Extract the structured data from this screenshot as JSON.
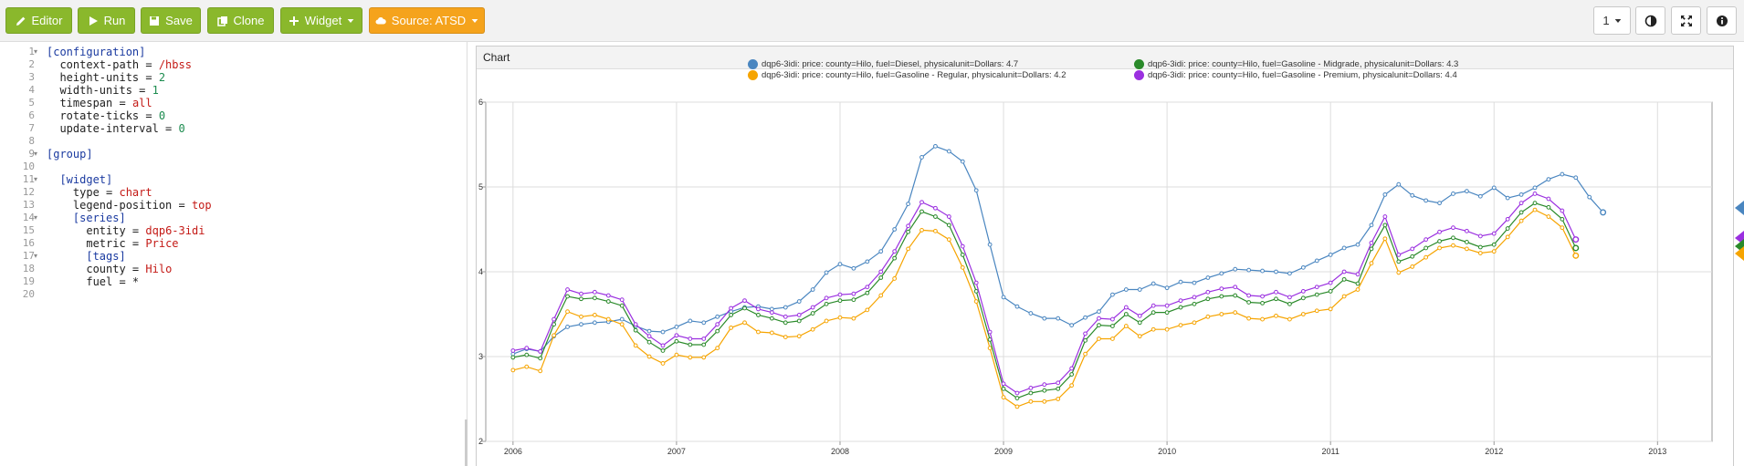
{
  "toolbar": {
    "editor_label": "Editor",
    "run_label": "Run",
    "save_label": "Save",
    "clone_label": "Clone",
    "widget_label": "Widget",
    "source_label": "Source: ATSD",
    "layout_value": "1"
  },
  "editor": {
    "line_numbers": [
      "1",
      "2",
      "3",
      "4",
      "5",
      "6",
      "7",
      "8",
      "9",
      "10",
      "11",
      "12",
      "13",
      "14",
      "15",
      "16",
      "17",
      "18",
      "19",
      "20"
    ],
    "lines": [
      {
        "indent": "",
        "parts": [
          [
            "sec",
            "[configuration]"
          ]
        ]
      },
      {
        "indent": "  ",
        "parts": [
          [
            "key",
            "context-path = "
          ],
          [
            "str",
            "/hbss"
          ]
        ]
      },
      {
        "indent": "  ",
        "parts": [
          [
            "key",
            "height-units = "
          ],
          [
            "num",
            "2"
          ]
        ]
      },
      {
        "indent": "  ",
        "parts": [
          [
            "key",
            "width-units = "
          ],
          [
            "num",
            "1"
          ]
        ]
      },
      {
        "indent": "  ",
        "parts": [
          [
            "key",
            "timespan = "
          ],
          [
            "str",
            "all"
          ]
        ]
      },
      {
        "indent": "  ",
        "parts": [
          [
            "key",
            "rotate-ticks = "
          ],
          [
            "num",
            "0"
          ]
        ]
      },
      {
        "indent": "  ",
        "parts": [
          [
            "key",
            "update-interval = "
          ],
          [
            "num",
            "0"
          ]
        ]
      },
      {
        "indent": "",
        "parts": []
      },
      {
        "indent": "",
        "parts": [
          [
            "sec",
            "[group]"
          ]
        ]
      },
      {
        "indent": "",
        "parts": []
      },
      {
        "indent": "  ",
        "parts": [
          [
            "sec",
            "[widget]"
          ]
        ]
      },
      {
        "indent": "    ",
        "parts": [
          [
            "key",
            "type = "
          ],
          [
            "str",
            "chart"
          ]
        ]
      },
      {
        "indent": "    ",
        "parts": [
          [
            "key",
            "legend-position = "
          ],
          [
            "str",
            "top"
          ]
        ]
      },
      {
        "indent": "    ",
        "parts": [
          [
            "sec",
            "[series]"
          ]
        ]
      },
      {
        "indent": "      ",
        "parts": [
          [
            "key",
            "entity = "
          ],
          [
            "str",
            "dqp6-3idi"
          ]
        ]
      },
      {
        "indent": "      ",
        "parts": [
          [
            "key",
            "metric = "
          ],
          [
            "str",
            "Price"
          ]
        ]
      },
      {
        "indent": "      ",
        "parts": [
          [
            "sec",
            "[tags]"
          ]
        ]
      },
      {
        "indent": "      ",
        "parts": [
          [
            "key",
            "county = "
          ],
          [
            "str",
            "Hilo"
          ]
        ]
      },
      {
        "indent": "      ",
        "parts": [
          [
            "key",
            "fuel = *"
          ]
        ]
      },
      {
        "indent": "",
        "parts": []
      }
    ]
  },
  "panel": {
    "title": "Chart"
  },
  "icons": {
    "editor": "pencil-icon",
    "run": "play-icon",
    "save": "save-icon",
    "clone": "copy-icon",
    "widget": "plus-icon",
    "source": "cloud-icon",
    "contrast": "contrast-icon",
    "fullscreen": "fullscreen-icon",
    "info": "info-icon"
  },
  "colors": {
    "green_button": "#8ab82c",
    "orange_button": "#f5a31c",
    "diesel": "#4a86c0",
    "regular": "#f6a400",
    "midgrade": "#2a8a2a",
    "premium": "#9b30e0"
  },
  "chart_data": {
    "type": "line",
    "x_start": "2006-01",
    "x_step": "month",
    "xlim": [
      "2005-11",
      "2013-05"
    ],
    "x_ticks": [
      "2006",
      "2007",
      "2008",
      "2009",
      "2010",
      "2011",
      "2012",
      "2013"
    ],
    "ylim": [
      2,
      6
    ],
    "y_ticks": [
      "2",
      "3",
      "4",
      "5",
      "6"
    ],
    "grid": true,
    "legend_position": "top",
    "series": [
      {
        "name": "dqp6-3idi: price: county=Hilo, fuel=Diesel, physicalunit=Dollars: 4.7",
        "color": "#4a86c0",
        "values": [
          3.03,
          3.09,
          3.06,
          3.24,
          3.35,
          3.38,
          3.4,
          3.41,
          3.44,
          3.36,
          3.3,
          3.29,
          3.35,
          3.42,
          3.4,
          3.47,
          3.53,
          3.58,
          3.59,
          3.56,
          3.58,
          3.65,
          3.79,
          3.99,
          4.09,
          4.04,
          4.12,
          4.24,
          4.5,
          4.8,
          5.35,
          5.48,
          5.42,
          5.3,
          4.96,
          4.32,
          3.7,
          3.59,
          3.51,
          3.45,
          3.45,
          3.37,
          3.46,
          3.53,
          3.73,
          3.79,
          3.79,
          3.86,
          3.81,
          3.88,
          3.87,
          3.93,
          3.98,
          4.03,
          4.02,
          4.01,
          4.0,
          3.98,
          4.05,
          4.13,
          4.2,
          4.28,
          4.32,
          4.55,
          4.91,
          5.03,
          4.9,
          4.84,
          4.81,
          4.92,
          4.95,
          4.89,
          4.99,
          4.87,
          4.91,
          4.99,
          5.09,
          5.15,
          5.11,
          4.88,
          4.7
        ]
      },
      {
        "name": "dqp6-3idi: price: county=Hilo, fuel=Gasoline - Regular, physicalunit=Dollars: 4.2",
        "color": "#f6a400",
        "values": [
          2.84,
          2.88,
          2.83,
          3.25,
          3.53,
          3.47,
          3.49,
          3.44,
          3.38,
          3.13,
          3.0,
          2.92,
          3.02,
          2.99,
          2.99,
          3.1,
          3.34,
          3.4,
          3.29,
          3.28,
          3.23,
          3.24,
          3.32,
          3.42,
          3.46,
          3.45,
          3.55,
          3.72,
          3.92,
          4.27,
          4.49,
          4.48,
          4.38,
          4.05,
          3.65,
          3.1,
          2.52,
          2.41,
          2.47,
          2.47,
          2.5,
          2.66,
          3.03,
          3.21,
          3.21,
          3.36,
          3.24,
          3.32,
          3.32,
          3.37,
          3.4,
          3.47,
          3.5,
          3.52,
          3.45,
          3.44,
          3.48,
          3.44,
          3.5,
          3.54,
          3.56,
          3.71,
          3.79,
          4.1,
          4.39,
          3.99,
          4.06,
          4.17,
          4.28,
          4.31,
          4.27,
          4.22,
          4.24,
          4.41,
          4.6,
          4.73,
          4.65,
          4.52,
          4.19
        ]
      },
      {
        "name": "dqp6-3idi: price: county=Hilo, fuel=Gasoline - Midgrade, physicalunit=Dollars: 4.3",
        "color": "#2a8a2a",
        "values": [
          2.99,
          3.02,
          2.98,
          3.38,
          3.71,
          3.68,
          3.69,
          3.65,
          3.6,
          3.31,
          3.17,
          3.07,
          3.18,
          3.14,
          3.14,
          3.3,
          3.49,
          3.57,
          3.49,
          3.45,
          3.4,
          3.42,
          3.51,
          3.62,
          3.66,
          3.67,
          3.75,
          3.93,
          4.16,
          4.47,
          4.71,
          4.65,
          4.55,
          4.2,
          3.77,
          3.2,
          2.62,
          2.51,
          2.57,
          2.6,
          2.62,
          2.79,
          3.19,
          3.37,
          3.36,
          3.5,
          3.4,
          3.52,
          3.52,
          3.58,
          3.62,
          3.68,
          3.71,
          3.72,
          3.64,
          3.63,
          3.68,
          3.62,
          3.69,
          3.73,
          3.77,
          3.91,
          3.86,
          4.27,
          4.55,
          4.12,
          4.18,
          4.28,
          4.36,
          4.4,
          4.35,
          4.29,
          4.32,
          4.51,
          4.7,
          4.81,
          4.76,
          4.62,
          4.28
        ]
      },
      {
        "name": "dqp6-3idi: price: county=Hilo, fuel=Gasoline - Premium, physicalunit=Dollars: 4.4",
        "color": "#9b30e0",
        "values": [
          3.07,
          3.1,
          3.06,
          3.44,
          3.79,
          3.74,
          3.76,
          3.72,
          3.67,
          3.38,
          3.24,
          3.13,
          3.25,
          3.21,
          3.21,
          3.38,
          3.57,
          3.66,
          3.56,
          3.52,
          3.47,
          3.49,
          3.58,
          3.69,
          3.73,
          3.74,
          3.82,
          4.0,
          4.24,
          4.54,
          4.82,
          4.75,
          4.65,
          4.3,
          3.87,
          3.29,
          2.68,
          2.57,
          2.63,
          2.67,
          2.69,
          2.86,
          3.27,
          3.45,
          3.44,
          3.58,
          3.48,
          3.6,
          3.6,
          3.66,
          3.7,
          3.76,
          3.8,
          3.82,
          3.72,
          3.71,
          3.76,
          3.7,
          3.77,
          3.82,
          3.87,
          4.0,
          3.97,
          4.34,
          4.65,
          4.2,
          4.27,
          4.38,
          4.47,
          4.52,
          4.48,
          4.42,
          4.45,
          4.62,
          4.81,
          4.92,
          4.86,
          4.72,
          4.38
        ]
      }
    ]
  }
}
